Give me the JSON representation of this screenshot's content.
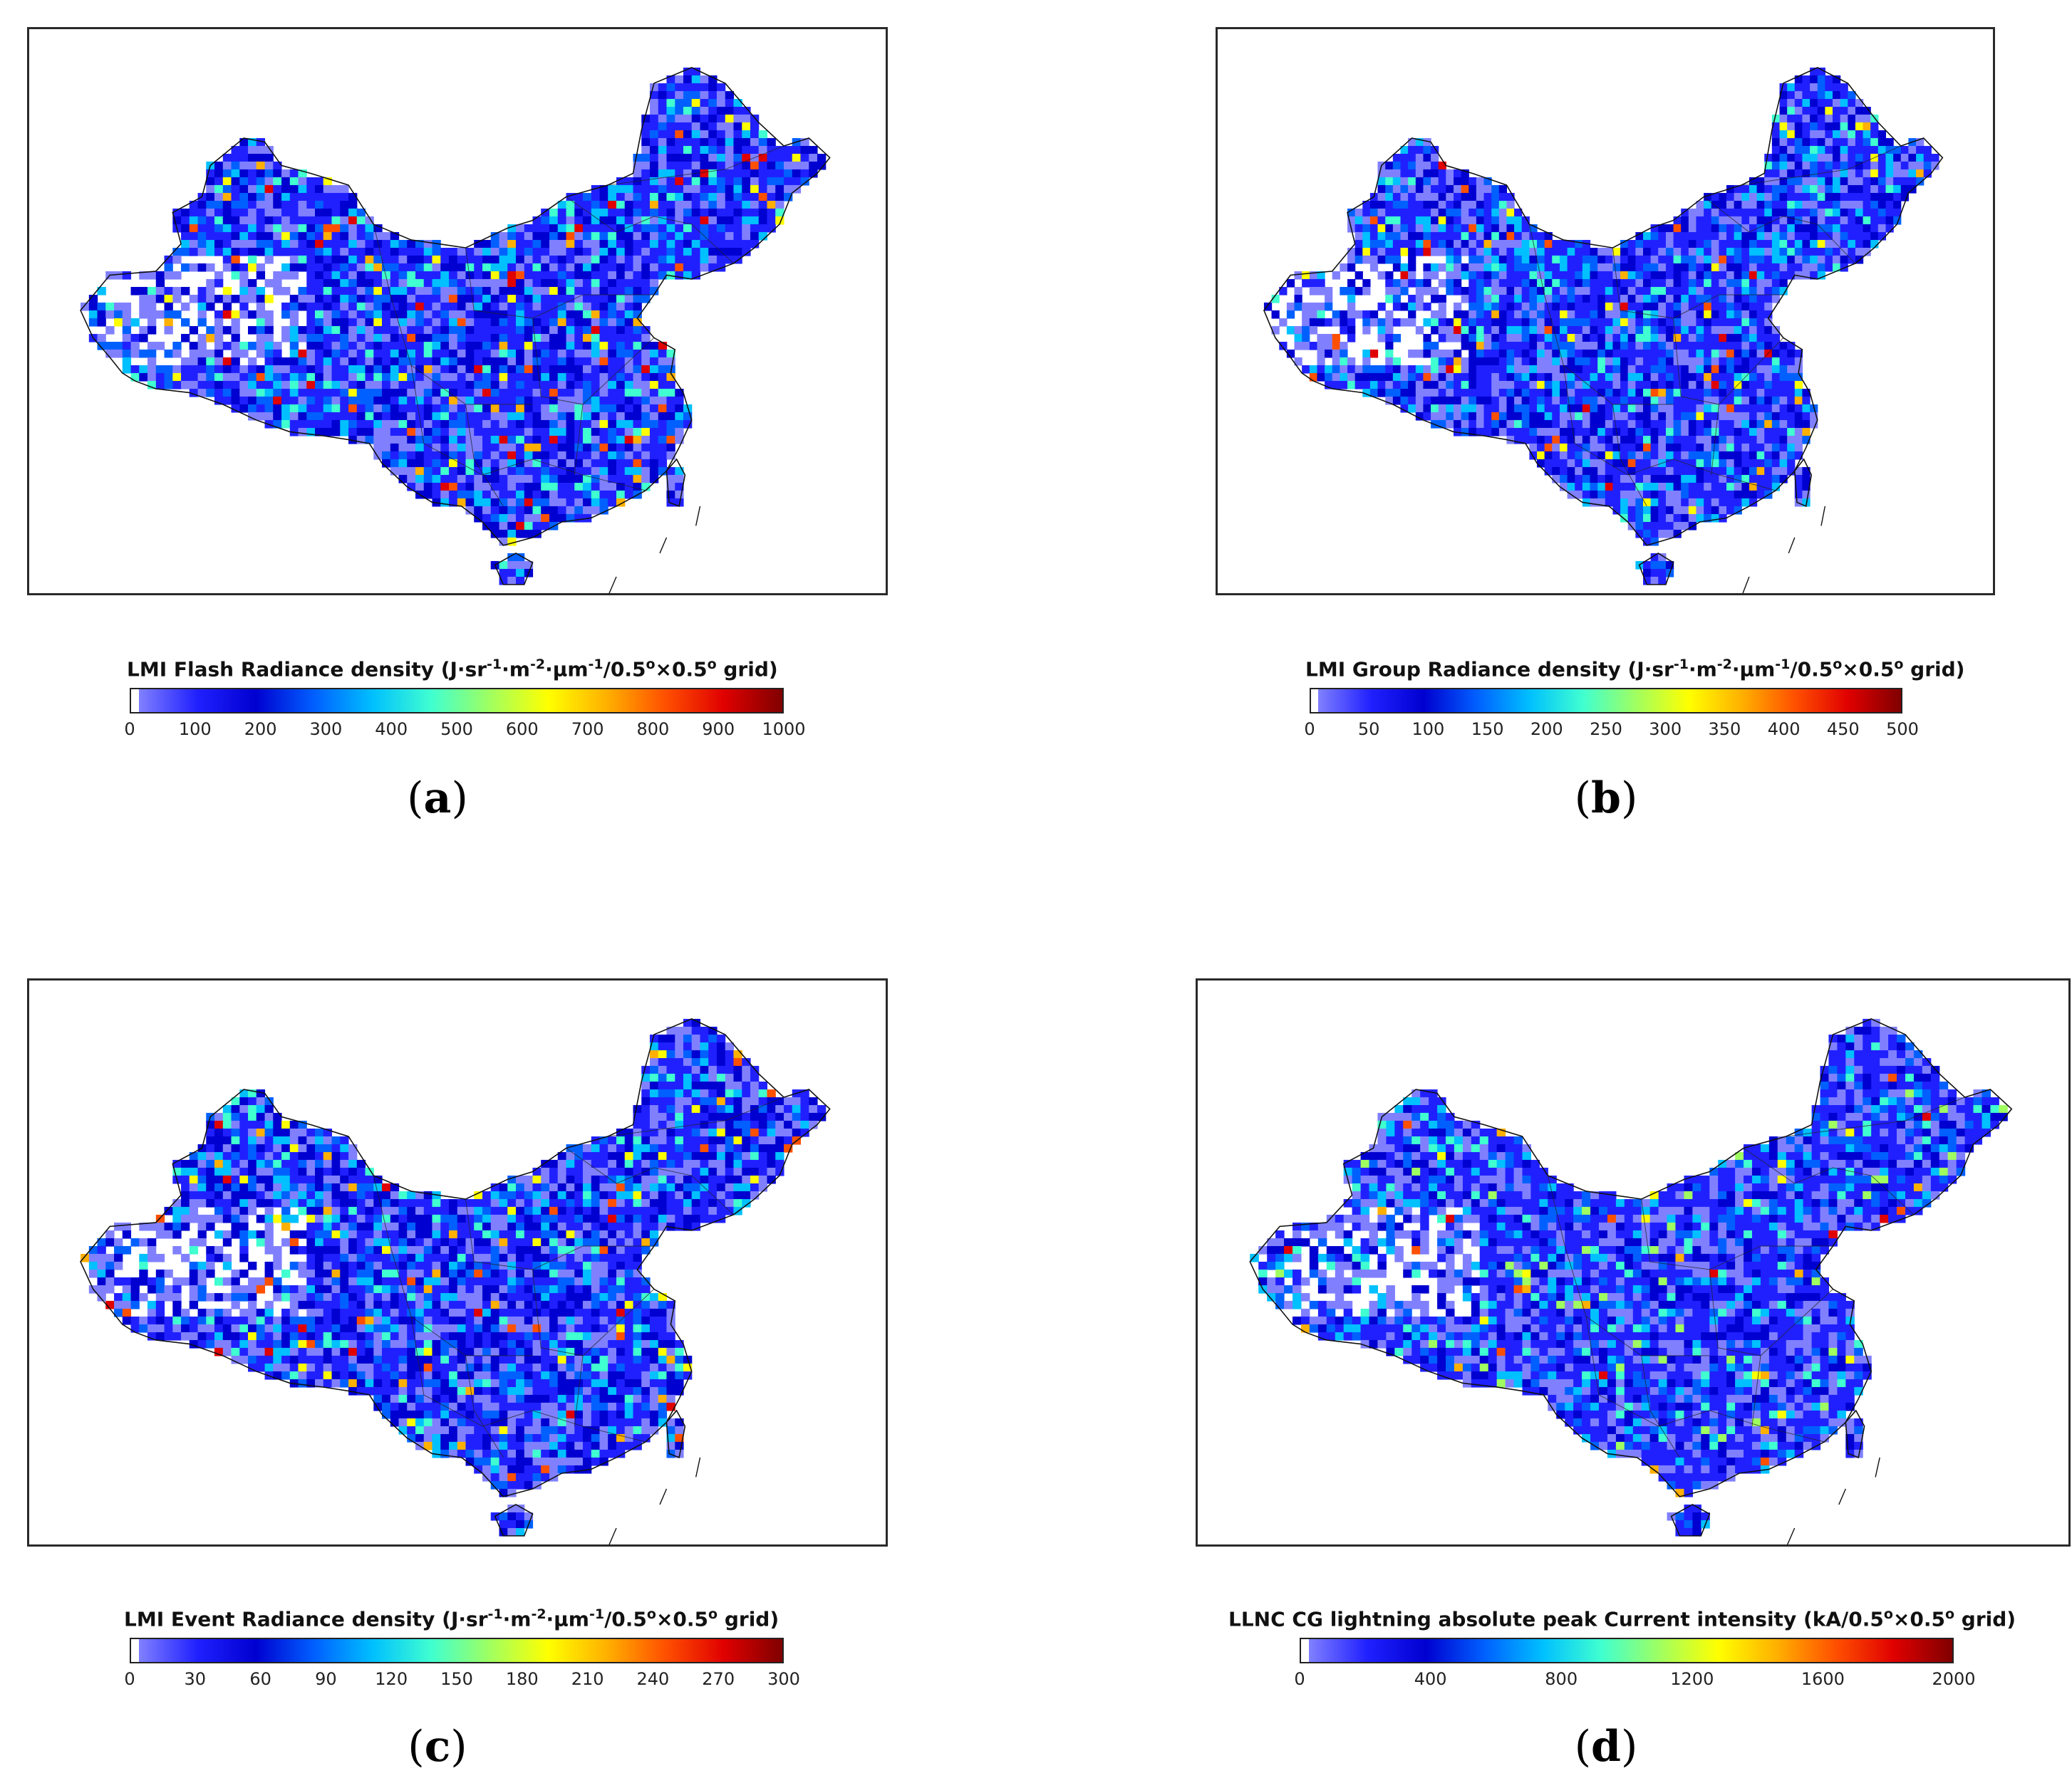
{
  "figure": {
    "panels": [
      {
        "id": "a",
        "label_letter": "a",
        "colorbar": {
          "title_main": "LMI Flash Radiance density (J·sr",
          "title_sup1": "-1",
          "title_mid1": "·m",
          "title_sup2": "-2",
          "title_mid2": "·µm",
          "title_sup3": "-1",
          "title_mid3": "/0.5",
          "title_sup4": "o",
          "title_mid4": "×0.5",
          "title_sup5": "o",
          "title_end": " grid)",
          "min": 0,
          "max": 1000,
          "ticks": [
            "0",
            "100",
            "200",
            "300",
            "400",
            "500",
            "600",
            "700",
            "800",
            "900",
            "1000"
          ]
        },
        "map": {
          "colormap": "jet",
          "grid": "0.5°×0.5°"
        }
      },
      {
        "id": "b",
        "label_letter": "b",
        "colorbar": {
          "title_main": "LMI Group Radiance density (J·sr",
          "title_sup1": "-1",
          "title_mid1": "·m",
          "title_sup2": "-2",
          "title_mid2": "·µm",
          "title_sup3": "-1",
          "title_mid3": "/0.5",
          "title_sup4": "o",
          "title_mid4": "×0.5",
          "title_sup5": "o",
          "title_end": " grid)",
          "min": 0,
          "max": 500,
          "ticks": [
            "0",
            "50",
            "100",
            "150",
            "200",
            "250",
            "300",
            "350",
            "400",
            "450",
            "500"
          ]
        },
        "map": {
          "colormap": "jet",
          "grid": "0.5°×0.5°"
        }
      },
      {
        "id": "c",
        "label_letter": "c",
        "colorbar": {
          "title_main": "LMI Event Radiance density (J·sr",
          "title_sup1": "-1",
          "title_mid1": "·m",
          "title_sup2": "-2",
          "title_mid2": "·µm",
          "title_sup3": "-1",
          "title_mid3": "/0.5",
          "title_sup4": "o",
          "title_mid4": "×0.5",
          "title_sup5": "o",
          "title_end": " grid)",
          "min": 0,
          "max": 300,
          "ticks": [
            "0",
            "30",
            "60",
            "90",
            "120",
            "150",
            "180",
            "210",
            "240",
            "270",
            "300"
          ]
        },
        "map": {
          "colormap": "jet",
          "grid": "0.5°×0.5°"
        }
      },
      {
        "id": "d",
        "label_letter": "d",
        "colorbar": {
          "title_main": "LLNC CG lightning absolute peak Current intensity (kA/0.5",
          "title_sup1": "",
          "title_mid1": "",
          "title_sup2": "",
          "title_mid2": "",
          "title_sup3": "",
          "title_mid3": "",
          "title_sup4": "o",
          "title_mid4": "×0.5",
          "title_sup5": "o",
          "title_end": " grid)",
          "min": 0,
          "max": 2000,
          "ticks": [
            "0",
            "400",
            "800",
            "1200",
            "1600",
            "2000"
          ]
        },
        "map": {
          "colormap": "jet",
          "grid": "0.5°×0.5°"
        }
      }
    ],
    "colors": {
      "jet": [
        "#ffffff",
        "#8080ff",
        "#2020ff",
        "#0000d0",
        "#0060ff",
        "#00c0ff",
        "#40ffd0",
        "#a0ff60",
        "#ffff00",
        "#ffb000",
        "#ff5000",
        "#e00000",
        "#800000"
      ]
    }
  }
}
